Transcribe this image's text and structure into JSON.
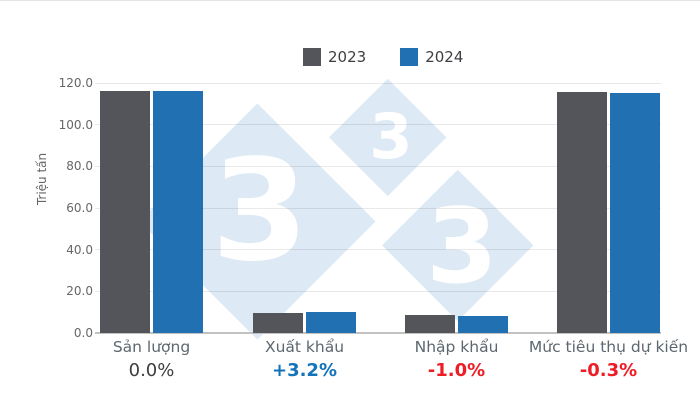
{
  "chart_data": {
    "type": "bar",
    "title": "",
    "legend_position": "top",
    "grid": true,
    "y_axis": {
      "label": "Triệu tấn",
      "min": 0,
      "max": 120,
      "ticks": [
        "120.0",
        "100.0",
        "80.0",
        "60.0",
        "40.0",
        "20.0",
        "0.0"
      ]
    },
    "categories": [
      "Sản lượng",
      "Xuất khẩu",
      "Nhập khẩu",
      "Mức tiêu thụ dự kiến"
    ],
    "series": [
      {
        "name": "2023",
        "color": "#53555a",
        "values": [
          116.2,
          9.7,
          8.5,
          115.5
        ]
      },
      {
        "name": "2024",
        "color": "#2170b2",
        "values": [
          116.2,
          10.0,
          8.4,
          115.2
        ]
      }
    ],
    "change_labels": [
      {
        "text": "0.0%",
        "color": "#3e3e3e",
        "bold": false
      },
      {
        "text": "+3.2%",
        "color": "#1273bb",
        "bold": true
      },
      {
        "text": "-1.0%",
        "color": "#ee1c25",
        "bold": true
      },
      {
        "text": "-0.3%",
        "color": "#ee1c25",
        "bold": true
      }
    ]
  },
  "watermark": {
    "digit": "3",
    "fill": "#dde9f5",
    "digit_color": "#ffffff"
  }
}
